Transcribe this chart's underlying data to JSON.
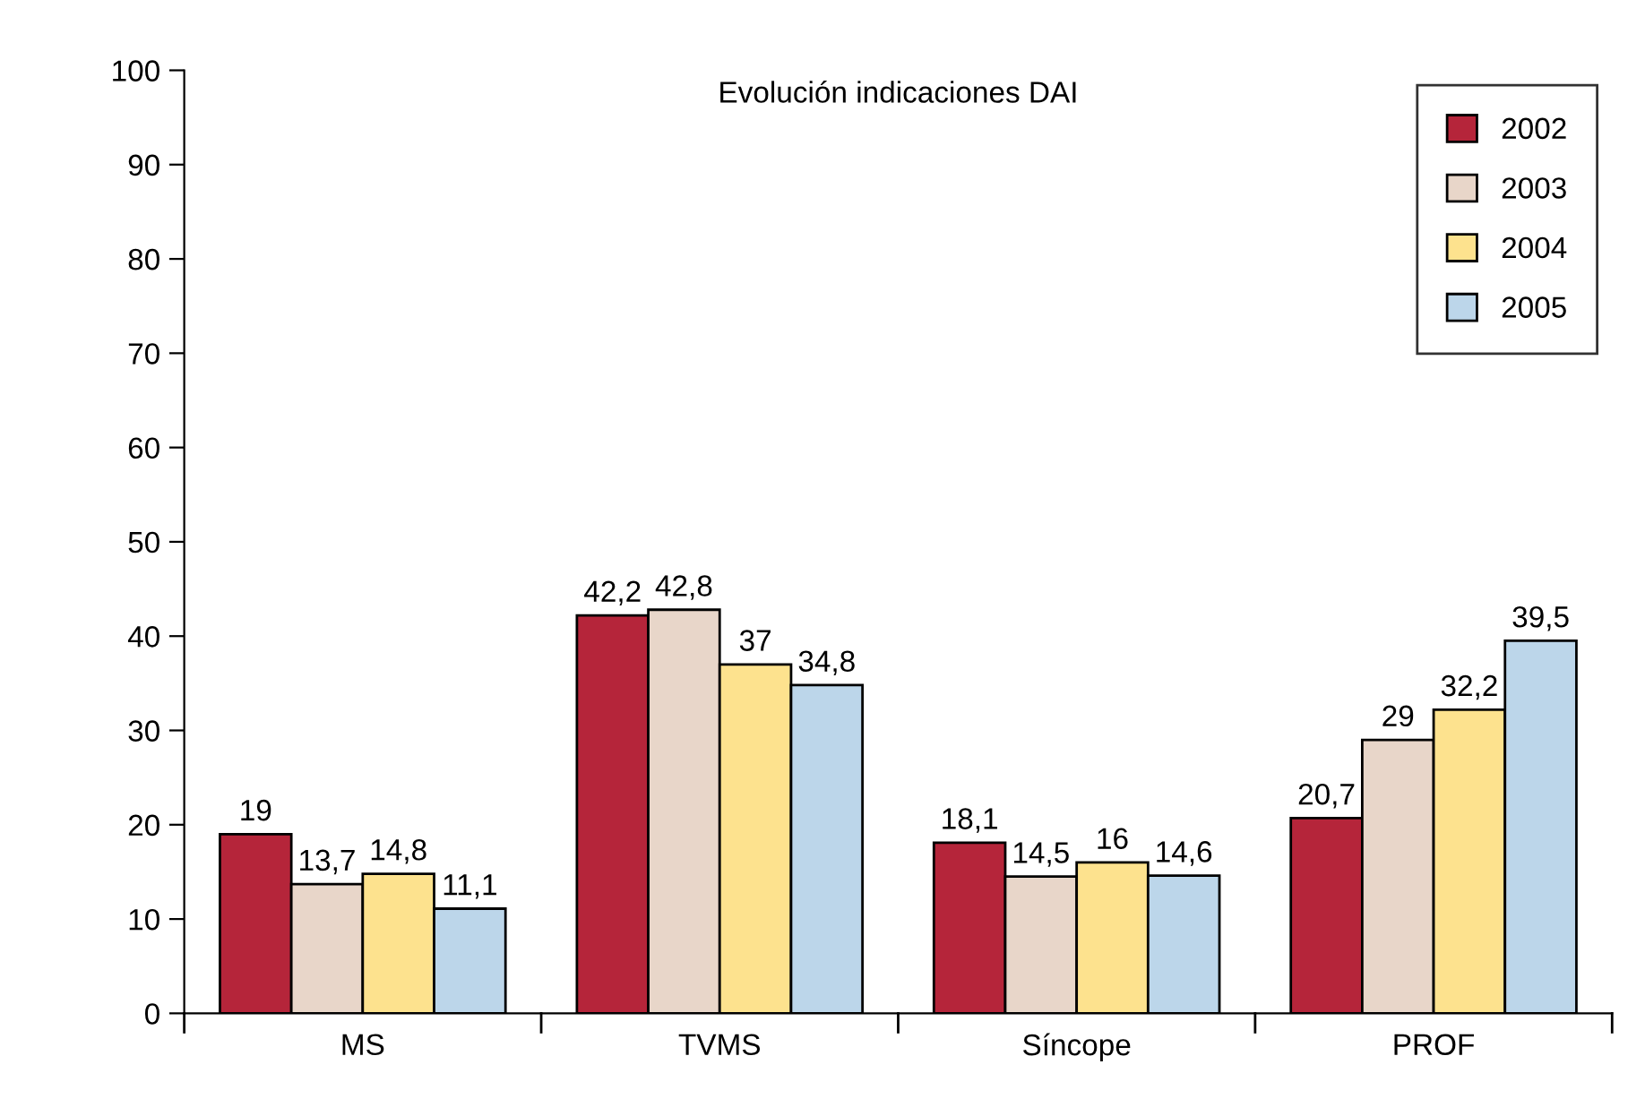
{
  "chart_data": {
    "type": "bar",
    "title": "Evolución indicaciones DAI",
    "categories": [
      "MS",
      "TVMS",
      "Síncope",
      "PROF"
    ],
    "series": [
      {
        "name": "2002",
        "color": "#b5253a",
        "values": [
          19,
          42.2,
          18.1,
          20.7
        ],
        "value_labels": [
          "19",
          "42,2",
          "18,1",
          "20,7"
        ]
      },
      {
        "name": "2003",
        "color": "#e8d6c9",
        "values": [
          13.7,
          42.8,
          14.5,
          29
        ],
        "value_labels": [
          "13,7",
          "42,8",
          "14,5",
          "29"
        ]
      },
      {
        "name": "2004",
        "color": "#fde28e",
        "values": [
          14.8,
          37,
          16,
          32.2
        ],
        "value_labels": [
          "14,8",
          "37",
          "16",
          "32,2"
        ]
      },
      {
        "name": "2005",
        "color": "#bcd6ea",
        "values": [
          11.1,
          34.8,
          14.6,
          39.5
        ],
        "value_labels": [
          "11,1",
          "34,8",
          "14,6",
          "39,5"
        ]
      }
    ],
    "ylim": [
      0,
      100
    ],
    "yticks": [
      0,
      10,
      20,
      30,
      40,
      50,
      60,
      70,
      80,
      90,
      100
    ],
    "grid": false,
    "legend": "top right"
  }
}
